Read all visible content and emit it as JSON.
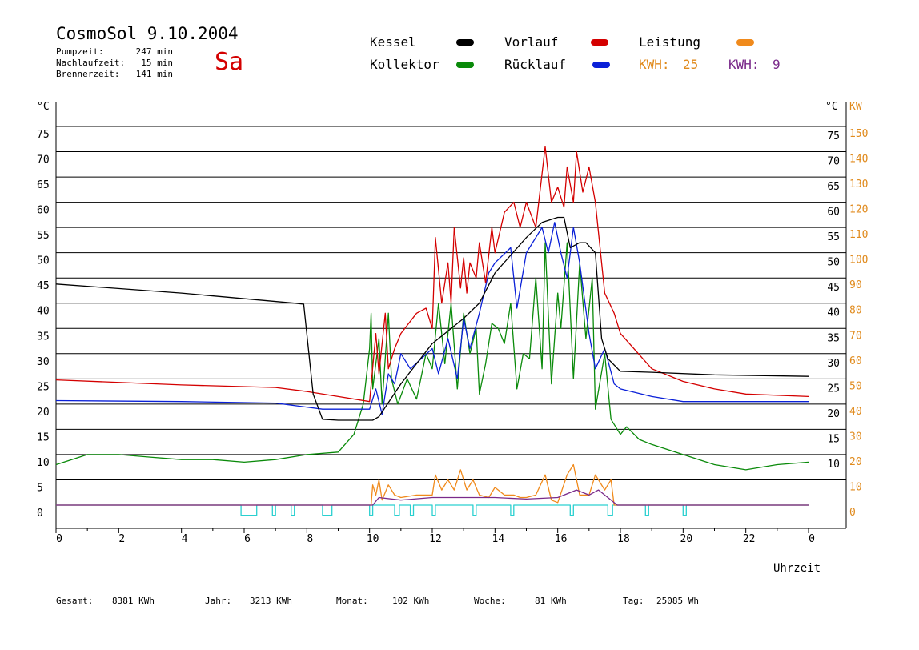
{
  "header": {
    "title": "CosmoSol 9.10.2004",
    "day": "Sa",
    "info": [
      {
        "label": "Pumpzeit:",
        "value": "247 min"
      },
      {
        "label": "Nachlaufzeit:",
        "value": "15 min"
      },
      {
        "label": "Brennerzeit:",
        "value": "141 min"
      }
    ]
  },
  "legend": {
    "kessel": {
      "label": "Kessel",
      "color": "#000000"
    },
    "vorlauf": {
      "label": "Vorlauf",
      "color": "#d40000"
    },
    "leistung": {
      "label": "Leistung",
      "color": "#f08a1c"
    },
    "kollektor": {
      "label": "Kollektor",
      "color": "#0a8a0a"
    },
    "ruecklauf": {
      "label": "Rücklauf",
      "color": "#0a20d8"
    },
    "kwh1": {
      "label": "KWH:",
      "value": "25",
      "color": "#e08a1c"
    },
    "kwh2": {
      "label": "KWH:",
      "value": "9",
      "color": "#7a2a8a"
    }
  },
  "axes": {
    "left_unit": "°C",
    "right_unit": "°C",
    "right_unit2": "KW",
    "xlabel": "Uhrzeit"
  },
  "footer": [
    {
      "label": "Gesamt:",
      "value": "8381 KWh"
    },
    {
      "label": "Jahr:",
      "value": "3213 KWh"
    },
    {
      "label": "Monat:",
      "value": "102 KWh"
    },
    {
      "label": "Woche:",
      "value": "81 KWh"
    },
    {
      "label": "Tag:",
      "value": "25085 Wh"
    }
  ],
  "chart_data": {
    "type": "line",
    "xlim": [
      0,
      24
    ],
    "ylim": [
      0,
      75
    ],
    "ylim_right_kw": [
      0,
      150
    ],
    "x_ticks": [
      "0",
      "2",
      "4",
      "6",
      "8",
      "10",
      "12",
      "14",
      "16",
      "18",
      "20",
      "22",
      "0"
    ],
    "y_ticks": [
      0,
      5,
      10,
      15,
      20,
      25,
      30,
      35,
      40,
      45,
      50,
      55,
      60,
      65,
      70,
      75
    ],
    "y_ticks_right": [
      10,
      15,
      20,
      25,
      30,
      35,
      40,
      45,
      50,
      55,
      60,
      65,
      70,
      75
    ],
    "y_ticks_kw": [
      0,
      10,
      20,
      30,
      40,
      50,
      60,
      70,
      80,
      90,
      100,
      110,
      120,
      130,
      140,
      150
    ],
    "grid": true,
    "series": [
      {
        "name": "Kessel",
        "color": "#000000",
        "points": [
          [
            0,
            43.8
          ],
          [
            4,
            42
          ],
          [
            7.6,
            40
          ],
          [
            7.9,
            39.8
          ],
          [
            8.2,
            22
          ],
          [
            8.5,
            17
          ],
          [
            9,
            16.8
          ],
          [
            10.1,
            16.8
          ],
          [
            10.3,
            17.5
          ],
          [
            11,
            24
          ],
          [
            12,
            32
          ],
          [
            13,
            37
          ],
          [
            13.5,
            40
          ],
          [
            14,
            46
          ],
          [
            15,
            53
          ],
          [
            15.5,
            56
          ],
          [
            16,
            57
          ],
          [
            16.2,
            57
          ],
          [
            16.4,
            51
          ],
          [
            16.7,
            52
          ],
          [
            16.9,
            52
          ],
          [
            17.2,
            50
          ],
          [
            17.4,
            33
          ],
          [
            17.6,
            29
          ],
          [
            18,
            26.5
          ],
          [
            19,
            26.3
          ],
          [
            21,
            25.8
          ],
          [
            24,
            25.5
          ]
        ]
      },
      {
        "name": "Vorlauf",
        "color": "#d40000",
        "points": [
          [
            0,
            24.8
          ],
          [
            4,
            23.8
          ],
          [
            7,
            23.3
          ],
          [
            8,
            22.5
          ],
          [
            9,
            21.5
          ],
          [
            10,
            20.5
          ],
          [
            10.2,
            34
          ],
          [
            10.3,
            26
          ],
          [
            10.5,
            38
          ],
          [
            10.6,
            27
          ],
          [
            10.8,
            31
          ],
          [
            11,
            34
          ],
          [
            11.5,
            38
          ],
          [
            11.8,
            39
          ],
          [
            12,
            35
          ],
          [
            12.1,
            53
          ],
          [
            12.3,
            40
          ],
          [
            12.5,
            48
          ],
          [
            12.6,
            40
          ],
          [
            12.7,
            55
          ],
          [
            12.9,
            43
          ],
          [
            13,
            49
          ],
          [
            13.1,
            42
          ],
          [
            13.2,
            48
          ],
          [
            13.4,
            45
          ],
          [
            13.5,
            52
          ],
          [
            13.7,
            44
          ],
          [
            13.9,
            55
          ],
          [
            14,
            50
          ],
          [
            14.3,
            58
          ],
          [
            14.6,
            60
          ],
          [
            14.8,
            55
          ],
          [
            15,
            60
          ],
          [
            15.3,
            55
          ],
          [
            15.6,
            71
          ],
          [
            15.8,
            60
          ],
          [
            16,
            63
          ],
          [
            16.2,
            59
          ],
          [
            16.3,
            67
          ],
          [
            16.5,
            60
          ],
          [
            16.6,
            70
          ],
          [
            16.8,
            62
          ],
          [
            17,
            67
          ],
          [
            17.2,
            60
          ],
          [
            17.5,
            42
          ],
          [
            17.8,
            38
          ],
          [
            18,
            34
          ],
          [
            19,
            27
          ],
          [
            20,
            24.5
          ],
          [
            21,
            23
          ],
          [
            22,
            22
          ],
          [
            24,
            21.5
          ]
        ]
      },
      {
        "name": "Rücklauf",
        "color": "#0a20d8",
        "points": [
          [
            0,
            20.7
          ],
          [
            4,
            20.5
          ],
          [
            7,
            20.2
          ],
          [
            8.5,
            19
          ],
          [
            10,
            19
          ],
          [
            10.2,
            23
          ],
          [
            10.4,
            18
          ],
          [
            10.6,
            26
          ],
          [
            10.8,
            24
          ],
          [
            11,
            30
          ],
          [
            11.3,
            27
          ],
          [
            12,
            31
          ],
          [
            12.2,
            26
          ],
          [
            12.5,
            33
          ],
          [
            12.8,
            25
          ],
          [
            13,
            37
          ],
          [
            13.2,
            31
          ],
          [
            13.5,
            38
          ],
          [
            13.8,
            46
          ],
          [
            14,
            48
          ],
          [
            14.5,
            51
          ],
          [
            14.7,
            39
          ],
          [
            15,
            50
          ],
          [
            15.5,
            55
          ],
          [
            15.7,
            50
          ],
          [
            15.9,
            56
          ],
          [
            16.1,
            50
          ],
          [
            16.3,
            45
          ],
          [
            16.5,
            55
          ],
          [
            16.7,
            48
          ],
          [
            17,
            34
          ],
          [
            17.2,
            27
          ],
          [
            17.5,
            31
          ],
          [
            17.8,
            24
          ],
          [
            18,
            23
          ],
          [
            19,
            21.5
          ],
          [
            20,
            20.5
          ],
          [
            22,
            20.5
          ],
          [
            24,
            20.5
          ]
        ]
      },
      {
        "name": "Kollektor",
        "color": "#0a8a0a",
        "points": [
          [
            0,
            8
          ],
          [
            0.5,
            9
          ],
          [
            1,
            10
          ],
          [
            2,
            10
          ],
          [
            3,
            9.5
          ],
          [
            4,
            9
          ],
          [
            5,
            9
          ],
          [
            6,
            8.5
          ],
          [
            7,
            9
          ],
          [
            8,
            10
          ],
          [
            9,
            10.5
          ],
          [
            9.5,
            14
          ],
          [
            9.8,
            20
          ],
          [
            10,
            31
          ],
          [
            10.05,
            38
          ],
          [
            10.1,
            23
          ],
          [
            10.3,
            33
          ],
          [
            10.4,
            20
          ],
          [
            10.6,
            38
          ],
          [
            10.7,
            25
          ],
          [
            10.9,
            20
          ],
          [
            11.2,
            25
          ],
          [
            11.5,
            21
          ],
          [
            11.8,
            30
          ],
          [
            12,
            27
          ],
          [
            12.2,
            40
          ],
          [
            12.4,
            28
          ],
          [
            12.6,
            40
          ],
          [
            12.8,
            23
          ],
          [
            13,
            38
          ],
          [
            13.2,
            30
          ],
          [
            13.4,
            35
          ],
          [
            13.5,
            22
          ],
          [
            13.7,
            28
          ],
          [
            13.9,
            36
          ],
          [
            14.1,
            35
          ],
          [
            14.3,
            32
          ],
          [
            14.5,
            40
          ],
          [
            14.7,
            23
          ],
          [
            14.9,
            30
          ],
          [
            15.1,
            29
          ],
          [
            15.3,
            45
          ],
          [
            15.5,
            27
          ],
          [
            15.6,
            52
          ],
          [
            15.8,
            24
          ],
          [
            16,
            42
          ],
          [
            16.1,
            35
          ],
          [
            16.3,
            52
          ],
          [
            16.5,
            25
          ],
          [
            16.7,
            48
          ],
          [
            16.9,
            33
          ],
          [
            17.1,
            45
          ],
          [
            17.2,
            19
          ],
          [
            17.5,
            30
          ],
          [
            17.7,
            17
          ],
          [
            18,
            14
          ],
          [
            18.2,
            15.5
          ],
          [
            18.6,
            13
          ],
          [
            19,
            12
          ],
          [
            20,
            10
          ],
          [
            21,
            8
          ],
          [
            22,
            7
          ],
          [
            23,
            8
          ],
          [
            24,
            8.5
          ]
        ]
      },
      {
        "name": "Leistung",
        "color": "#f08a1c",
        "points": [
          [
            0,
            0
          ],
          [
            10.05,
            0
          ],
          [
            10.1,
            4
          ],
          [
            10.2,
            2
          ],
          [
            10.3,
            5
          ],
          [
            10.4,
            1
          ],
          [
            10.6,
            4
          ],
          [
            10.8,
            2
          ],
          [
            11,
            1.5
          ],
          [
            11.5,
            2
          ],
          [
            12,
            2
          ],
          [
            12.1,
            6
          ],
          [
            12.3,
            3
          ],
          [
            12.5,
            5
          ],
          [
            12.7,
            3
          ],
          [
            12.9,
            7
          ],
          [
            13.1,
            3
          ],
          [
            13.3,
            5
          ],
          [
            13.5,
            2
          ],
          [
            13.8,
            1.5
          ],
          [
            14,
            3.5
          ],
          [
            14.3,
            2
          ],
          [
            14.6,
            2
          ],
          [
            14.8,
            1.5
          ],
          [
            15,
            1.5
          ],
          [
            15.3,
            2
          ],
          [
            15.6,
            6
          ],
          [
            15.8,
            1
          ],
          [
            16,
            0.5
          ],
          [
            16.3,
            6
          ],
          [
            16.5,
            8
          ],
          [
            16.7,
            2
          ],
          [
            17,
            2
          ],
          [
            17.2,
            6
          ],
          [
            17.5,
            3
          ],
          [
            17.7,
            5
          ],
          [
            17.8,
            0
          ],
          [
            24,
            0
          ]
        ]
      },
      {
        "name": "KWH",
        "color": "#7a2a8a",
        "points": [
          [
            0,
            0
          ],
          [
            10.1,
            0
          ],
          [
            10.3,
            1.5
          ],
          [
            11,
            1
          ],
          [
            12,
            1.5
          ],
          [
            13,
            1.5
          ],
          [
            14,
            1.5
          ],
          [
            15,
            1.2
          ],
          [
            16,
            1.5
          ],
          [
            16.6,
            3
          ],
          [
            17,
            2
          ],
          [
            17.3,
            3
          ],
          [
            17.6,
            1.5
          ],
          [
            17.9,
            0
          ],
          [
            24,
            0
          ]
        ]
      },
      {
        "name": "Pumpe",
        "color": "#2ad0d0",
        "points": [
          [
            0,
            0
          ],
          [
            5.9,
            0
          ],
          [
            5.9,
            -2
          ],
          [
            6.4,
            -2
          ],
          [
            6.4,
            0
          ],
          [
            6.9,
            0
          ],
          [
            6.9,
            -2
          ],
          [
            7.0,
            -2
          ],
          [
            7.0,
            0
          ],
          [
            7.5,
            0
          ],
          [
            7.5,
            -2
          ],
          [
            7.6,
            -2
          ],
          [
            7.6,
            0
          ],
          [
            8.5,
            0
          ],
          [
            8.5,
            -2
          ],
          [
            8.8,
            -2
          ],
          [
            8.8,
            0
          ],
          [
            10,
            0
          ],
          [
            10,
            -2
          ],
          [
            10.1,
            -2
          ],
          [
            10.1,
            0
          ],
          [
            10.8,
            0
          ],
          [
            10.8,
            -2
          ],
          [
            10.95,
            -2
          ],
          [
            10.95,
            0
          ],
          [
            11.3,
            0
          ],
          [
            11.3,
            -2
          ],
          [
            11.4,
            -2
          ],
          [
            11.4,
            0
          ],
          [
            12,
            0
          ],
          [
            12,
            -2
          ],
          [
            12.1,
            -2
          ],
          [
            12.1,
            0
          ],
          [
            13.3,
            0
          ],
          [
            13.3,
            -2
          ],
          [
            13.4,
            -2
          ],
          [
            13.4,
            0
          ],
          [
            14.5,
            0
          ],
          [
            14.5,
            -2
          ],
          [
            14.6,
            -2
          ],
          [
            14.6,
            0
          ],
          [
            16.4,
            0
          ],
          [
            16.4,
            -2
          ],
          [
            16.5,
            -2
          ],
          [
            16.5,
            0
          ],
          [
            17.6,
            0
          ],
          [
            17.6,
            -2
          ],
          [
            17.75,
            -2
          ],
          [
            17.75,
            0
          ],
          [
            18.8,
            0
          ],
          [
            18.8,
            -2
          ],
          [
            18.9,
            -2
          ],
          [
            18.9,
            0
          ],
          [
            20,
            0
          ],
          [
            20,
            -2
          ],
          [
            20.1,
            -2
          ],
          [
            20.1,
            0
          ],
          [
            24,
            0
          ]
        ]
      }
    ]
  }
}
